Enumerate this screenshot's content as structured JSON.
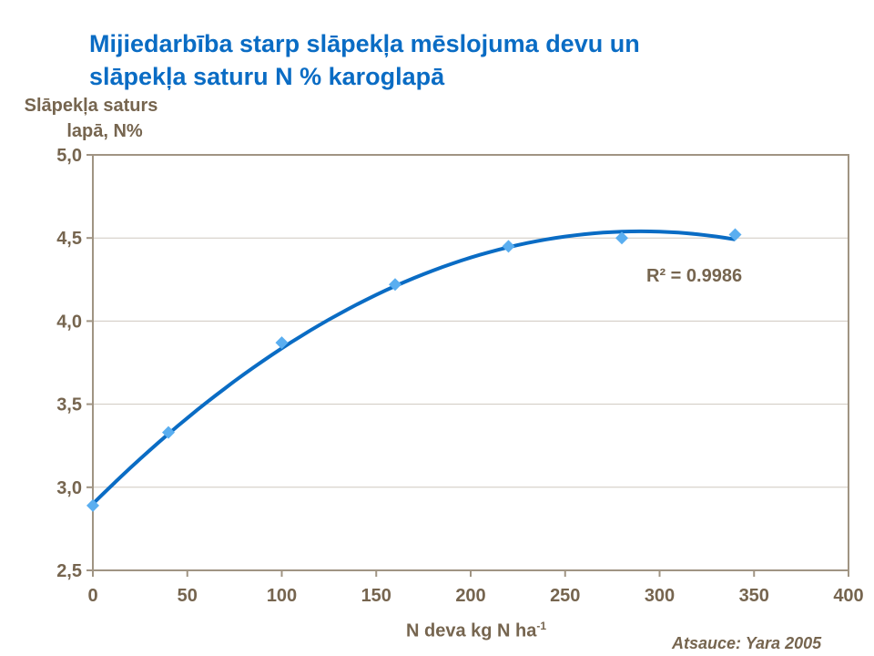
{
  "chart_data": {
    "type": "scatter",
    "title_line1": "Mijiedarbība starp slāpekļa mēslojuma devu un",
    "title_line2": "slāpekļa saturu N % karoglapā",
    "ylabel_line1": "Slāpekļa saturs",
    "ylabel_line2": "lapā, N%",
    "xlabel": "N deva kg N ha",
    "xlabel_sup": "-1",
    "source": "Atsauce: Yara 2005",
    "xlim": [
      0,
      400
    ],
    "ylim": [
      2.5,
      5.0
    ],
    "x_ticks": [
      "0",
      "50",
      "100",
      "150",
      "200",
      "250",
      "300",
      "350",
      "400"
    ],
    "y_ticks": [
      "2,5",
      "3,0",
      "3,5",
      "4,0",
      "4,5",
      "5,0"
    ],
    "grid": "horizontal",
    "points": [
      {
        "x": 0,
        "y": 2.89
      },
      {
        "x": 40,
        "y": 3.33
      },
      {
        "x": 100,
        "y": 3.87
      },
      {
        "x": 160,
        "y": 4.22
      },
      {
        "x": 220,
        "y": 4.45
      },
      {
        "x": 280,
        "y": 4.5
      },
      {
        "x": 340,
        "y": 4.52
      }
    ],
    "trendline": {
      "type": "polynomial-2",
      "coefficients": [
        2.9,
        0.01131,
        -1.95e-05
      ],
      "x_range": [
        0,
        340
      ],
      "label": "R² = 0.9986"
    },
    "colors": {
      "points": "#5aaef0",
      "trendline": "#0a6cc4",
      "axis": "#a09483",
      "grid": "#cfc8bf",
      "text": "#76654f",
      "title": "#0a6cc4"
    }
  }
}
